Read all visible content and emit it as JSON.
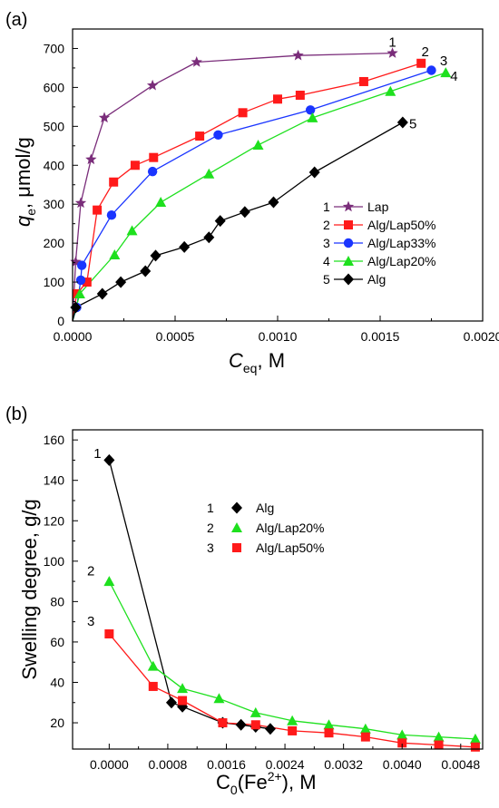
{
  "chart_data": [
    {
      "panel_label": "(a)",
      "type": "line",
      "xlabel": {
        "main": "C",
        "sub": "eq",
        "unit": ", M"
      },
      "ylabel": {
        "main": "q",
        "sub": "e",
        "unit": ", μmol/g"
      },
      "xlim": [
        0,
        0.002
      ],
      "ylim": [
        0,
        750
      ],
      "xticks": [
        {
          "v": 0,
          "label": "0.0000"
        },
        {
          "v": 0.0005,
          "label": "0.0005"
        },
        {
          "v": 0.001,
          "label": "0.0010"
        },
        {
          "v": 0.0015,
          "label": "0.0015"
        },
        {
          "v": 0.002,
          "label": "0.0020"
        }
      ],
      "yticks": [
        {
          "v": 0,
          "label": "0"
        },
        {
          "v": 100,
          "label": "100"
        },
        {
          "v": 200,
          "label": "200"
        },
        {
          "v": 300,
          "label": "300"
        },
        {
          "v": 400,
          "label": "400"
        },
        {
          "v": 500,
          "label": "500"
        },
        {
          "v": 600,
          "label": "600"
        },
        {
          "v": 700,
          "label": "700"
        }
      ],
      "legend_position": "center-right",
      "series": [
        {
          "number": "1",
          "name": "Lap",
          "color": "#7a2d7a",
          "marker": "star",
          "x": [
            0,
            1.5e-05,
            4e-05,
            9e-05,
            0.000155,
            0.00039,
            0.000605,
            0.0011,
            0.00156
          ],
          "y": [
            0,
            152,
            303,
            415,
            522,
            605,
            665,
            682,
            688
          ],
          "label_at": [
            0.00156,
            705
          ]
        },
        {
          "number": "2",
          "name": "Alg/Lap50%",
          "color": "#ff1a1a",
          "marker": "square",
          "x": [
            0,
            2e-05,
            7e-05,
            0.00012,
            0.0002,
            0.000305,
            0.000395,
            0.00062,
            0.00083,
            0.001,
            0.00111,
            0.00142,
            0.0017
          ],
          "y": [
            0,
            70,
            100,
            285,
            357,
            400,
            420,
            475,
            535,
            570,
            580,
            615,
            662
          ],
          "label_at": [
            0.00172,
            680
          ]
        },
        {
          "number": "3",
          "name": "Alg/Lap33%",
          "color": "#1a35ff",
          "marker": "circle",
          "x": [
            0,
            2e-05,
            4e-05,
            4.5e-05,
            0.00019,
            0.00039,
            0.00071,
            0.00116,
            0.00175
          ],
          "y": [
            0,
            35,
            105,
            143,
            272,
            384,
            478,
            542,
            644
          ],
          "label_at": [
            0.00181,
            657
          ]
        },
        {
          "number": "4",
          "name": "Alg/Lap20%",
          "color": "#1ee01e",
          "marker": "triangle",
          "x": [
            0,
            3.5e-05,
            0.000205,
            0.00029,
            0.00043,
            0.000665,
            0.000905,
            0.00117,
            0.00155,
            0.00182
          ],
          "y": [
            0,
            70,
            170,
            232,
            305,
            378,
            452,
            522,
            590,
            638
          ],
          "label_at": [
            0.00186,
            617
          ]
        },
        {
          "number": "5",
          "name": "Alg",
          "color": "#000000",
          "marker": "diamond",
          "x": [
            0,
            1.5e-05,
            0.000145,
            0.000235,
            0.000355,
            0.000405,
            0.000545,
            0.000665,
            0.00072,
            0.00084,
            0.00098,
            0.00118,
            0.00161
          ],
          "y": [
            0,
            35,
            70,
            100,
            128,
            168,
            190,
            215,
            257,
            280,
            305,
            382,
            510
          ],
          "label_at": [
            0.00166,
            495
          ]
        }
      ]
    },
    {
      "panel_label": "(b)",
      "type": "line",
      "xlabel": {
        "main": "C",
        "sub": "0",
        "mid": "(Fe",
        "sup": "2+",
        "unit": "), M"
      },
      "ylabel": {
        "main": "Swelling degree, g/g"
      },
      "xlim": [
        -0.0005,
        0.0051
      ],
      "ylim": [
        7,
        165
      ],
      "xticks": [
        {
          "v": 0,
          "label": "0.0000"
        },
        {
          "v": 0.0008,
          "label": "0.0008"
        },
        {
          "v": 0.0016,
          "label": "0.0016"
        },
        {
          "v": 0.0024,
          "label": "0.0024"
        },
        {
          "v": 0.0032,
          "label": "0.0032"
        },
        {
          "v": 0.004,
          "label": "0.0040"
        },
        {
          "v": 0.0048,
          "label": "0.0048"
        }
      ],
      "yticks": [
        {
          "v": 20,
          "label": "20"
        },
        {
          "v": 40,
          "label": "40"
        },
        {
          "v": 60,
          "label": "60"
        },
        {
          "v": 80,
          "label": "80"
        },
        {
          "v": 100,
          "label": "100"
        },
        {
          "v": 120,
          "label": "120"
        },
        {
          "v": 140,
          "label": "140"
        },
        {
          "v": 160,
          "label": "160"
        }
      ],
      "legend_position": "top-center",
      "series": [
        {
          "number": "1",
          "name": "Alg",
          "color": "#000000",
          "marker": "diamond",
          "x": [
            0,
            0.00085,
            0.001,
            0.00155,
            0.0018,
            0.002,
            0.0022
          ],
          "y": [
            150,
            30,
            28,
            20,
            19,
            18,
            17
          ],
          "label_at": [
            -0.00016,
            151
          ]
        },
        {
          "number": "2",
          "name": "Alg/Lap20%",
          "color": "#1ee01e",
          "marker": "triangle",
          "x": [
            0,
            0.0006,
            0.001,
            0.0015,
            0.002,
            0.0025,
            0.003,
            0.0035,
            0.004,
            0.0045,
            0.005
          ],
          "y": [
            90,
            48,
            37,
            32,
            25,
            21,
            19,
            17,
            14,
            13,
            12
          ],
          "label_at": [
            -0.00025,
            93
          ]
        },
        {
          "number": "3",
          "name": "Alg/Lap50%",
          "color": "#ff1a1a",
          "marker": "square",
          "x": [
            0,
            0.0006,
            0.001,
            0.00155,
            0.002,
            0.0025,
            0.003,
            0.0035,
            0.004,
            0.0045,
            0.005
          ],
          "y": [
            64,
            38,
            31,
            20,
            19,
            16,
            15,
            13,
            10,
            9,
            8
          ],
          "label_at": [
            -0.00025,
            68
          ]
        }
      ]
    }
  ]
}
